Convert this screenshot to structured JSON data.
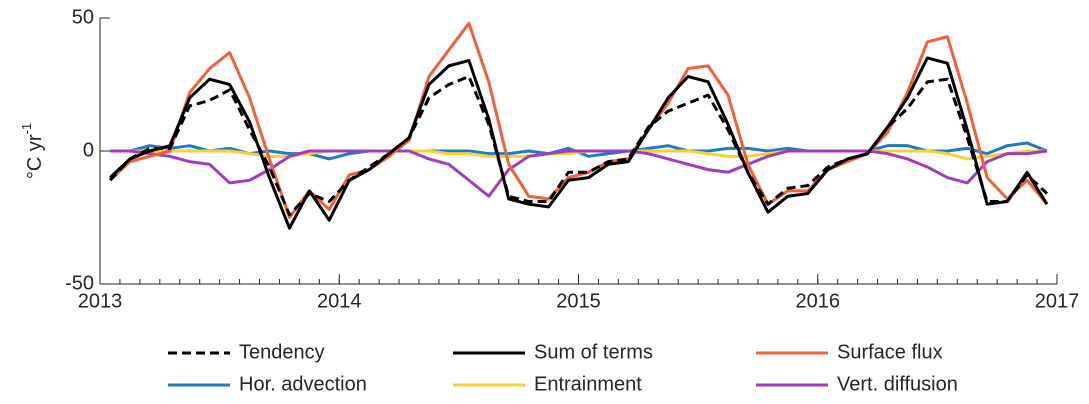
{
  "chart_data": {
    "type": "line",
    "y_label": {
      "text": "°C yr",
      "superscript": "-1"
    },
    "x": [
      2013.042,
      2013.125,
      2013.208,
      2013.292,
      2013.375,
      2013.458,
      2013.542,
      2013.625,
      2013.708,
      2013.792,
      2013.875,
      2013.958,
      2014.042,
      2014.125,
      2014.208,
      2014.292,
      2014.375,
      2014.458,
      2014.542,
      2014.625,
      2014.708,
      2014.792,
      2014.875,
      2014.958,
      2015.042,
      2015.125,
      2015.208,
      2015.292,
      2015.375,
      2015.458,
      2015.542,
      2015.625,
      2015.708,
      2015.792,
      2015.875,
      2015.958,
      2016.042,
      2016.125,
      2016.208,
      2016.292,
      2016.375,
      2016.458,
      2016.542,
      2016.625,
      2016.708,
      2016.792,
      2016.875,
      2016.958
    ],
    "series": [
      {
        "name": "Tendency",
        "color": "#000000",
        "style": "dashed",
        "values": [
          -11,
          -3,
          1,
          1,
          17,
          19,
          23,
          8,
          -6,
          -24,
          -16,
          -19,
          -11,
          -6,
          -1,
          5,
          20,
          25,
          28,
          10,
          -17,
          -19,
          -19,
          -8,
          -8,
          -4,
          -3,
          9,
          15,
          18,
          21,
          8,
          -8,
          -20,
          -14,
          -13,
          -6,
          -3,
          -1,
          9,
          16,
          26,
          27,
          5,
          -19,
          -19,
          -9,
          -16
        ]
      },
      {
        "name": "Sum of terms",
        "color": "#000000",
        "style": "solid",
        "values": [
          -10,
          -3,
          0,
          2,
          20,
          27,
          25,
          11,
          -10,
          -29,
          -15,
          -26,
          -11,
          -7,
          -1,
          5,
          25,
          32,
          34,
          12,
          -18,
          -20,
          -21,
          -11,
          -10,
          -5,
          -4,
          8,
          20,
          28,
          26,
          10,
          -8,
          -23,
          -17,
          -16,
          -7,
          -3,
          -1,
          9,
          20,
          35,
          33,
          8,
          -20,
          -19,
          -8,
          -20
        ]
      },
      {
        "name": "Surface flux",
        "color": "#f2603a",
        "style": "solid",
        "values": [
          -11,
          -4,
          -2,
          0,
          22,
          31,
          37,
          20,
          -3,
          -25,
          -15,
          -22,
          -9,
          -7,
          -2,
          4,
          28,
          38,
          48,
          26,
          -5,
          -17,
          -18,
          -10,
          -8,
          -4,
          -3,
          8,
          18,
          31,
          32,
          21,
          -5,
          -20,
          -15,
          -15,
          -7,
          -4,
          -1,
          7,
          22,
          41,
          43,
          18,
          -10,
          -18,
          -11,
          -20
        ]
      },
      {
        "name": "Hor. advection",
        "color": "#1f7bbf",
        "style": "solid",
        "values": [
          0,
          0,
          2,
          1,
          2,
          0,
          1,
          -1,
          0,
          -1,
          -1,
          -3,
          -1,
          0,
          0,
          0,
          0,
          0,
          0,
          -1,
          -1,
          0,
          -1,
          1,
          -2,
          -1,
          0,
          1,
          2,
          0,
          0,
          1,
          1,
          0,
          1,
          0,
          0,
          0,
          0,
          2,
          2,
          0,
          0,
          1,
          -1,
          2,
          3,
          0
        ]
      },
      {
        "name": "Entrainment",
        "color": "#f5d232",
        "style": "solid",
        "values": [
          0,
          0,
          0,
          0,
          0,
          0,
          0,
          -1,
          -2,
          -2,
          -1,
          0,
          0,
          0,
          0,
          0,
          0,
          -1,
          -1,
          -2,
          -2,
          -2,
          -1,
          -1,
          0,
          0,
          0,
          0,
          0,
          0,
          -1,
          -2,
          -2,
          -1,
          0,
          0,
          0,
          0,
          0,
          0,
          0,
          0,
          -1,
          -3,
          -2,
          -1,
          0,
          0
        ]
      },
      {
        "name": "Vert. diffusion",
        "color": "#a03cc0",
        "style": "solid",
        "values": [
          0,
          0,
          -1,
          -2,
          -4,
          -5,
          -12,
          -11,
          -7,
          -2,
          0,
          0,
          0,
          0,
          0,
          0,
          -3,
          -5,
          -11,
          -17,
          -7,
          -2,
          -1,
          0,
          0,
          0,
          0,
          -1,
          -3,
          -5,
          -7,
          -8,
          -5,
          -2,
          0,
          0,
          0,
          0,
          0,
          -1,
          -3,
          -6,
          -10,
          -12,
          -4,
          -1,
          -1,
          0
        ]
      }
    ],
    "xlim": [
      2013,
      2017
    ],
    "xticks": [
      2013,
      2014,
      2015,
      2016,
      2017
    ],
    "ylim": [
      -50,
      50
    ],
    "yticks": [
      -50,
      0,
      50
    ]
  }
}
